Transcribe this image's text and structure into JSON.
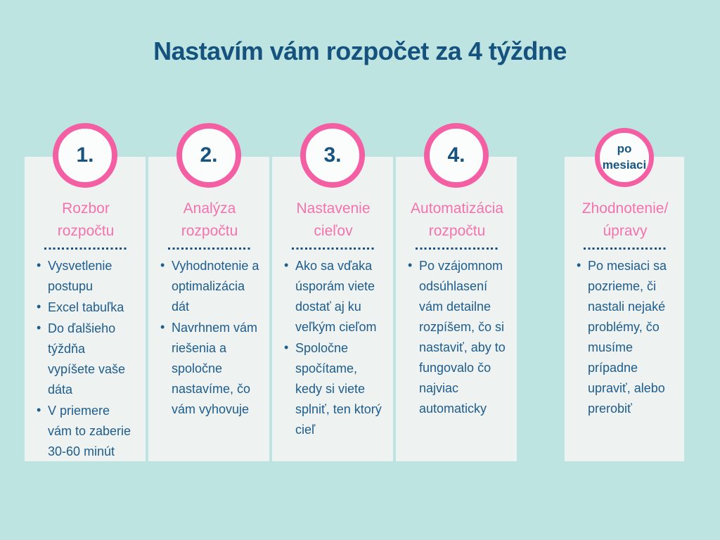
{
  "page": {
    "title": "Nastavím vám rozpočet za 4 týždne"
  },
  "colors": {
    "background": "#bee4e2",
    "card_background": "#eef3f2",
    "title_navy": "#15527e",
    "body_navy": "#1e5c8c",
    "heading_pink": "#f672ae",
    "circle_border_pink": "#f45fa4",
    "circle_fill": "#fbfdfd"
  },
  "cards": [
    {
      "badge_lines": [
        "1."
      ],
      "heading_lines": [
        "Rozbor",
        "rozpočtu"
      ],
      "bullets": [
        "Vysvetlenie postupu",
        "Excel tabuľka",
        "Do ďalšieho týždňa vypíšete vaše dáta",
        "V priemere vám to zaberie 30-60 minút"
      ]
    },
    {
      "badge_lines": [
        "2."
      ],
      "heading_lines": [
        "Analýza",
        "rozpočtu"
      ],
      "bullets": [
        "Vyhodnotenie a optimalizácia dát",
        "Navrhnem vám riešenia a spoločne nastavíme, čo vám vyhovuje"
      ]
    },
    {
      "badge_lines": [
        "3."
      ],
      "heading_lines": [
        "Nastavenie",
        "cieľov"
      ],
      "bullets": [
        "Ako sa vďaka úsporám viete dostať aj ku veľkým cieľom",
        "Spoločne spočítame, kedy si viete splniť, ten ktorý cieľ"
      ]
    },
    {
      "badge_lines": [
        "4."
      ],
      "heading_lines": [
        "Automatizácia",
        "rozpočtu"
      ],
      "bullets": [
        "Po vzájomnom odsúhlasení vám detailne rozpíšem, čo si nastaviť, aby to fungovalo čo najviac automaticky"
      ]
    },
    {
      "badge_lines": [
        "po",
        "mesiaci"
      ],
      "heading_lines": [
        "Zhodnotenie/",
        "úpravy"
      ],
      "bullets": [
        "Po mesiaci sa pozrieme, či nastali nejaké problémy, čo musíme prípadne upraviť, alebo prerobiť"
      ],
      "after_month": true
    }
  ]
}
